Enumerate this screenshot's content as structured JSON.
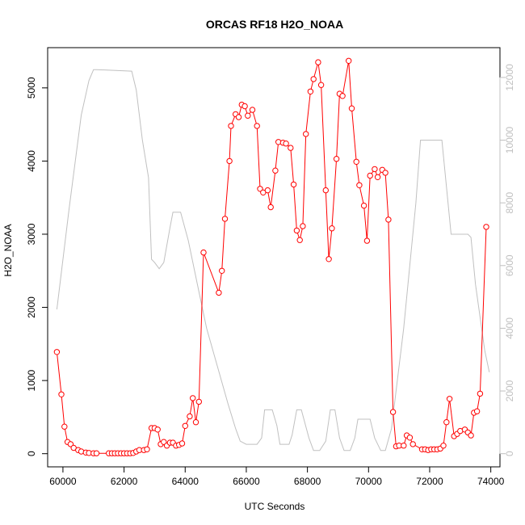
{
  "chart_data": {
    "type": "line",
    "title": "ORCAS RF18 H2O_NOAA",
    "xlabel": "UTC Seconds",
    "ylabel": "H2O_NOAA",
    "xlim": [
      59500,
      74300
    ],
    "ylim": [
      -180,
      5550
    ],
    "y2lim": [
      -420,
      12950
    ],
    "x_ticks": [
      60000,
      62000,
      64000,
      66000,
      68000,
      70000,
      72000,
      74000
    ],
    "y_ticks": [
      0,
      1000,
      2000,
      3000,
      4000,
      5000
    ],
    "y2_ticks": [
      0,
      2000,
      4000,
      6000,
      8000,
      10000,
      12000
    ],
    "colors": {
      "h2o": "#ff0000",
      "secondary": "#c0c0c0",
      "axis": "#000000",
      "right_axis": "#c0c0c0"
    },
    "series": [
      {
        "name": "H2O_NOAA",
        "axis": "left",
        "style": "line+points",
        "points": [
          [
            59800,
            1390
          ],
          [
            59950,
            810
          ],
          [
            60050,
            370
          ],
          [
            60150,
            160
          ],
          [
            60250,
            130
          ],
          [
            60350,
            80
          ],
          [
            60500,
            50
          ],
          [
            60600,
            30
          ],
          [
            60750,
            15
          ],
          [
            60850,
            10
          ],
          [
            61000,
            5
          ],
          [
            61100,
            5
          ],
          [
            61500,
            5
          ],
          [
            61600,
            5
          ],
          [
            61700,
            5
          ],
          [
            61800,
            5
          ],
          [
            61900,
            5
          ],
          [
            62000,
            5
          ],
          [
            62100,
            5
          ],
          [
            62200,
            5
          ],
          [
            62300,
            10
          ],
          [
            62400,
            30
          ],
          [
            62500,
            50
          ],
          [
            62650,
            50
          ],
          [
            62750,
            60
          ],
          [
            62900,
            350
          ],
          [
            63000,
            350
          ],
          [
            63100,
            330
          ],
          [
            63200,
            130
          ],
          [
            63300,
            160
          ],
          [
            63400,
            110
          ],
          [
            63500,
            150
          ],
          [
            63600,
            150
          ],
          [
            63700,
            110
          ],
          [
            63800,
            120
          ],
          [
            63900,
            140
          ],
          [
            64000,
            380
          ],
          [
            64150,
            510
          ],
          [
            64250,
            760
          ],
          [
            64350,
            430
          ],
          [
            64450,
            710
          ],
          [
            64600,
            2750
          ],
          [
            65100,
            2200
          ],
          [
            65200,
            2500
          ],
          [
            65300,
            3210
          ],
          [
            65450,
            4000
          ],
          [
            65500,
            4480
          ],
          [
            65650,
            4640
          ],
          [
            65750,
            4600
          ],
          [
            65850,
            4770
          ],
          [
            65950,
            4750
          ],
          [
            66050,
            4620
          ],
          [
            66200,
            4700
          ],
          [
            66350,
            4480
          ],
          [
            66450,
            3620
          ],
          [
            66550,
            3570
          ],
          [
            66700,
            3600
          ],
          [
            66800,
            3370
          ],
          [
            66950,
            3870
          ],
          [
            67050,
            4260
          ],
          [
            67200,
            4250
          ],
          [
            67300,
            4240
          ],
          [
            67450,
            4180
          ],
          [
            67550,
            3680
          ],
          [
            67650,
            3050
          ],
          [
            67750,
            2920
          ],
          [
            67850,
            3110
          ],
          [
            67950,
            4370
          ],
          [
            68100,
            4950
          ],
          [
            68200,
            5120
          ],
          [
            68350,
            5350
          ],
          [
            68450,
            5040
          ],
          [
            68600,
            3600
          ],
          [
            68700,
            2660
          ],
          [
            68800,
            3080
          ],
          [
            68950,
            4030
          ],
          [
            69050,
            4920
          ],
          [
            69150,
            4890
          ],
          [
            69350,
            5370
          ],
          [
            69450,
            4720
          ],
          [
            69600,
            3990
          ],
          [
            69700,
            3670
          ],
          [
            69850,
            3390
          ],
          [
            69950,
            2910
          ],
          [
            70050,
            3800
          ],
          [
            70200,
            3890
          ],
          [
            70300,
            3780
          ],
          [
            70450,
            3880
          ],
          [
            70550,
            3840
          ],
          [
            70650,
            3200
          ],
          [
            70800,
            570
          ],
          [
            70900,
            100
          ],
          [
            71000,
            110
          ],
          [
            71150,
            110
          ],
          [
            71250,
            250
          ],
          [
            71350,
            220
          ],
          [
            71450,
            130
          ],
          [
            71750,
            60
          ],
          [
            71850,
            60
          ],
          [
            71950,
            50
          ],
          [
            72050,
            60
          ],
          [
            72150,
            60
          ],
          [
            72250,
            60
          ],
          [
            72350,
            70
          ],
          [
            72450,
            110
          ],
          [
            72550,
            430
          ],
          [
            72650,
            750
          ],
          [
            72800,
            240
          ],
          [
            72900,
            270
          ],
          [
            73000,
            310
          ],
          [
            73150,
            330
          ],
          [
            73250,
            290
          ],
          [
            73350,
            250
          ],
          [
            73450,
            560
          ],
          [
            73550,
            580
          ],
          [
            73650,
            820
          ],
          [
            73850,
            3100
          ]
        ]
      },
      {
        "axis": "right",
        "style": "line",
        "points": [
          [
            59800,
            4600
          ],
          [
            60200,
            7800
          ],
          [
            60600,
            10800
          ],
          [
            60850,
            11900
          ],
          [
            61000,
            12250
          ],
          [
            61100,
            12250
          ],
          [
            62250,
            12200
          ],
          [
            62400,
            11600
          ],
          [
            62600,
            10000
          ],
          [
            62800,
            8800
          ],
          [
            62900,
            6200
          ],
          [
            63000,
            6100
          ],
          [
            63150,
            5900
          ],
          [
            63300,
            6100
          ],
          [
            63500,
            7200
          ],
          [
            63600,
            7700
          ],
          [
            63850,
            7700
          ],
          [
            64100,
            6800
          ],
          [
            64400,
            5400
          ],
          [
            64700,
            4000
          ],
          [
            65050,
            2800
          ],
          [
            65400,
            1600
          ],
          [
            65650,
            800
          ],
          [
            65800,
            400
          ],
          [
            66000,
            300
          ],
          [
            66350,
            300
          ],
          [
            66500,
            500
          ],
          [
            66600,
            1400
          ],
          [
            66850,
            1400
          ],
          [
            67000,
            900
          ],
          [
            67100,
            300
          ],
          [
            67400,
            300
          ],
          [
            67500,
            600
          ],
          [
            67650,
            1400
          ],
          [
            67800,
            1400
          ],
          [
            68050,
            500
          ],
          [
            68200,
            100
          ],
          [
            68400,
            100
          ],
          [
            68600,
            400
          ],
          [
            68750,
            1400
          ],
          [
            68900,
            1400
          ],
          [
            69050,
            500
          ],
          [
            69200,
            100
          ],
          [
            69400,
            100
          ],
          [
            69550,
            500
          ],
          [
            69650,
            1100
          ],
          [
            70050,
            1100
          ],
          [
            70200,
            500
          ],
          [
            70400,
            100
          ],
          [
            70550,
            100
          ],
          [
            70750,
            800
          ],
          [
            71150,
            4000
          ],
          [
            71550,
            8000
          ],
          [
            71700,
            10000
          ],
          [
            71850,
            10000
          ],
          [
            72400,
            10000
          ],
          [
            72700,
            7000
          ],
          [
            73250,
            7000
          ],
          [
            73350,
            6900
          ],
          [
            73500,
            5400
          ],
          [
            73800,
            3300
          ],
          [
            73950,
            2600
          ]
        ]
      }
    ]
  }
}
